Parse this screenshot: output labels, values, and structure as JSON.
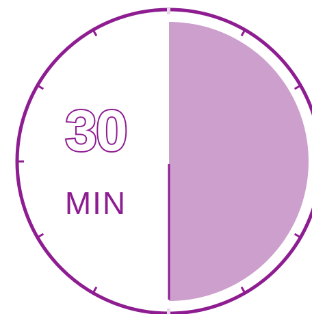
{
  "timer": {
    "minutes": "30",
    "unit": "MIN",
    "elapsed_fraction": 0.5,
    "colors": {
      "ring": "#8E1D91",
      "fill": "#CC9FCC",
      "background": "#FFFFFF",
      "top_marker": "#E7D6EA"
    }
  }
}
